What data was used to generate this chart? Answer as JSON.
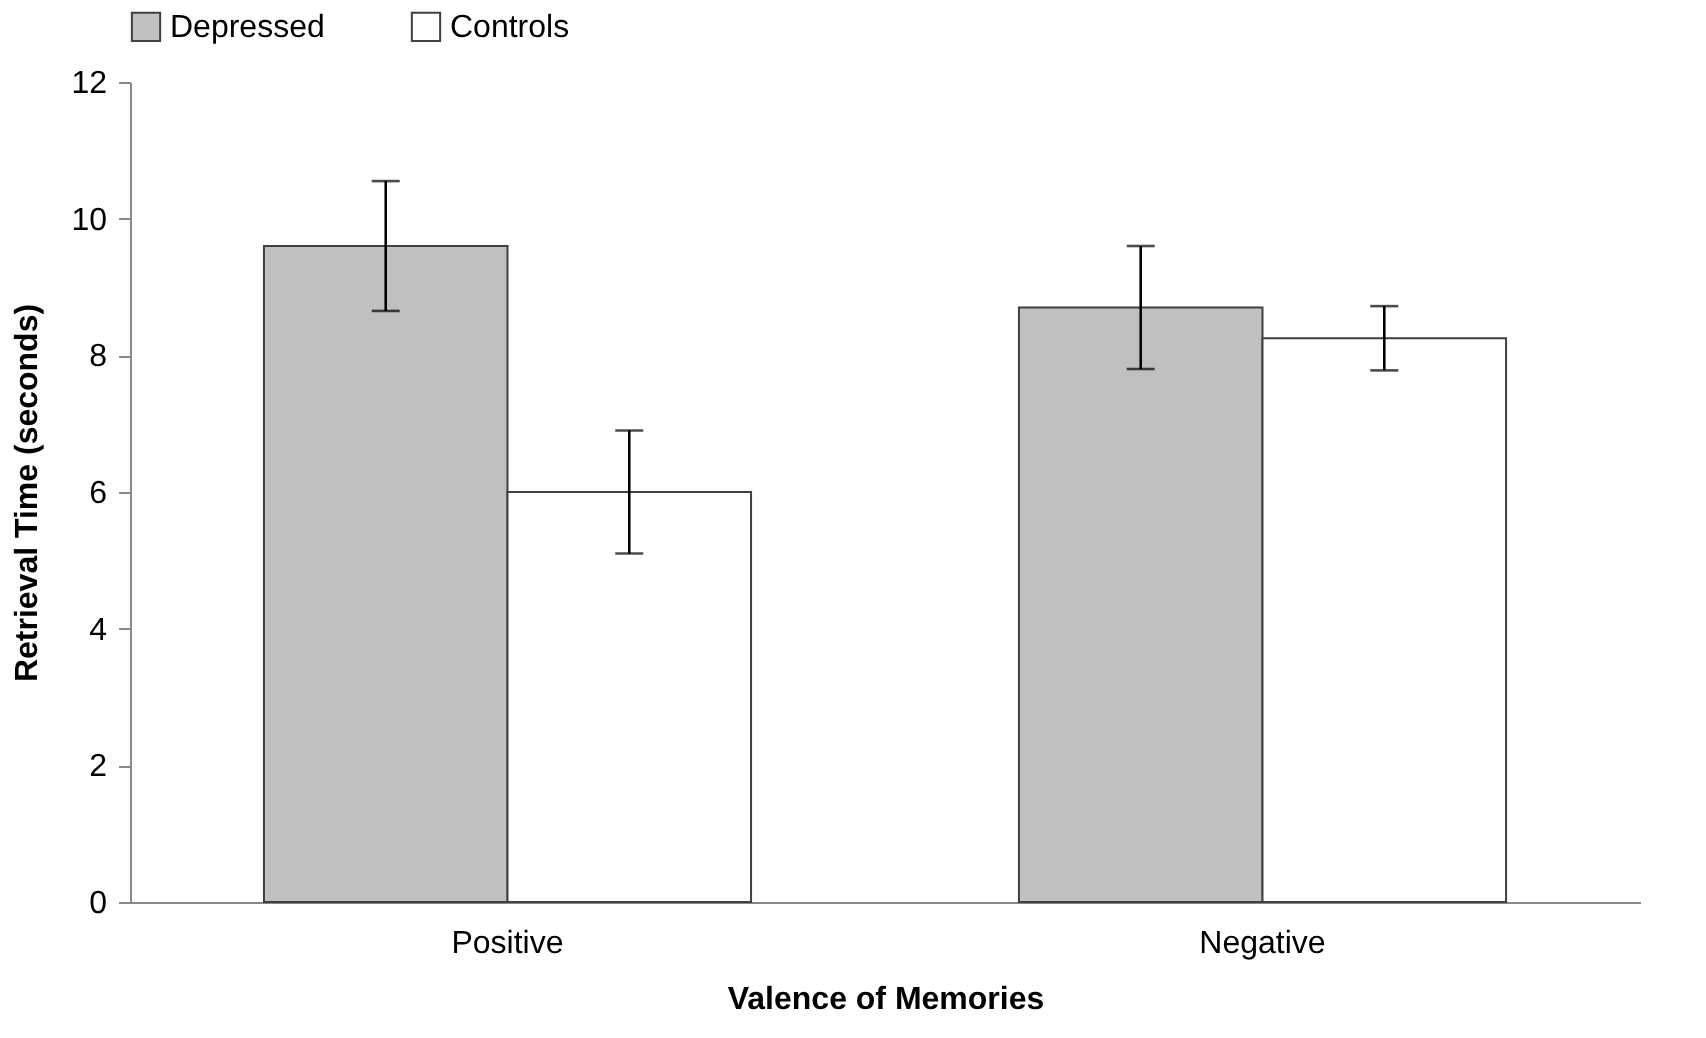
{
  "chart_data": {
    "type": "bar",
    "xlabel": "Valence of Memories",
    "ylabel": "Retrieval Time (seconds)",
    "categories": [
      "Positive",
      "Negative"
    ],
    "series": [
      {
        "name": "Depressed",
        "color": "#c0c0c0",
        "values": [
          9.6,
          8.7
        ],
        "errors": [
          0.95,
          0.9
        ]
      },
      {
        "name": "Controls",
        "color": "#ffffff",
        "values": [
          6.0,
          8.25
        ],
        "errors": [
          0.9,
          0.47
        ]
      }
    ],
    "ylim": [
      0,
      12
    ],
    "yticks": [
      0,
      2,
      4,
      6,
      8,
      10,
      12
    ],
    "grid": false,
    "legend": "top"
  }
}
